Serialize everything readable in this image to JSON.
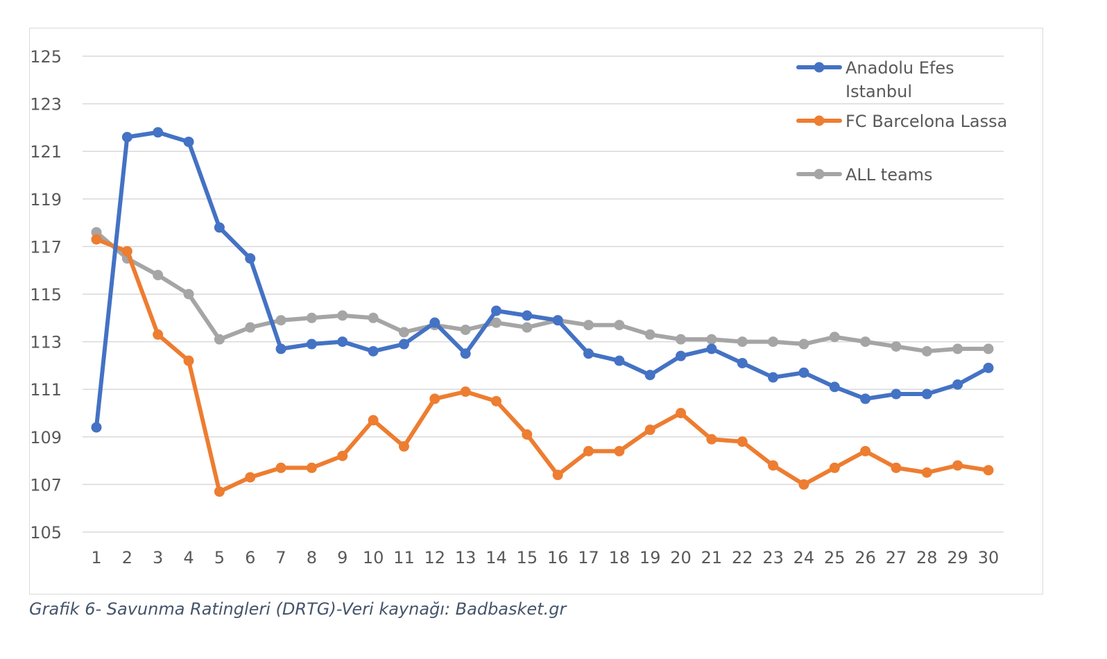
{
  "caption": "Grafik 6- Savunma Ratingleri (DRTG)-Veri kaynağı: Badbasket.gr",
  "chart_data": {
    "type": "line",
    "title": "",
    "xlabel": "",
    "ylabel": "",
    "x": [
      1,
      2,
      3,
      4,
      5,
      6,
      7,
      8,
      9,
      10,
      11,
      12,
      13,
      14,
      15,
      16,
      17,
      18,
      19,
      20,
      21,
      22,
      23,
      24,
      25,
      26,
      27,
      28,
      29,
      30
    ],
    "ylim": [
      105,
      125
    ],
    "yticks": [
      105,
      107,
      109,
      111,
      113,
      115,
      117,
      119,
      121,
      123,
      125
    ],
    "grid": true,
    "legend_position": "top-right",
    "series": [
      {
        "name_lines": [
          "Anadolu Efes",
          "Istanbul"
        ],
        "color": "#4472c4",
        "values": [
          109.4,
          121.6,
          121.8,
          121.4,
          117.8,
          116.5,
          112.7,
          112.9,
          113.0,
          112.6,
          112.9,
          113.8,
          112.5,
          114.3,
          114.1,
          113.9,
          112.5,
          112.2,
          111.6,
          112.4,
          112.7,
          112.1,
          111.5,
          111.7,
          111.1,
          110.6,
          110.8,
          110.8,
          111.2,
          111.9
        ]
      },
      {
        "name_lines": [
          "FC Barcelona Lassa"
        ],
        "color": "#ed7d31",
        "values": [
          117.3,
          116.8,
          113.3,
          112.2,
          106.7,
          107.3,
          107.7,
          107.7,
          108.2,
          109.7,
          108.6,
          110.6,
          110.9,
          110.5,
          109.1,
          107.4,
          108.4,
          108.4,
          109.3,
          110.0,
          108.9,
          108.8,
          107.8,
          107.0,
          107.7,
          108.4,
          107.7,
          107.5,
          107.8,
          107.6
        ]
      },
      {
        "name_lines": [
          "ALL teams"
        ],
        "color": "#a5a5a5",
        "values": [
          117.6,
          116.5,
          115.8,
          115.0,
          113.1,
          113.6,
          113.9,
          114.0,
          114.1,
          114.0,
          113.4,
          113.7,
          113.5,
          113.8,
          113.6,
          113.9,
          113.7,
          113.7,
          113.3,
          113.1,
          113.1,
          113.0,
          113.0,
          112.9,
          113.2,
          113.0,
          112.8,
          112.6,
          112.7,
          112.7
        ]
      }
    ],
    "styles": {
      "grid_color": "#d9d9d9",
      "tick_color": "#595959"
    }
  }
}
